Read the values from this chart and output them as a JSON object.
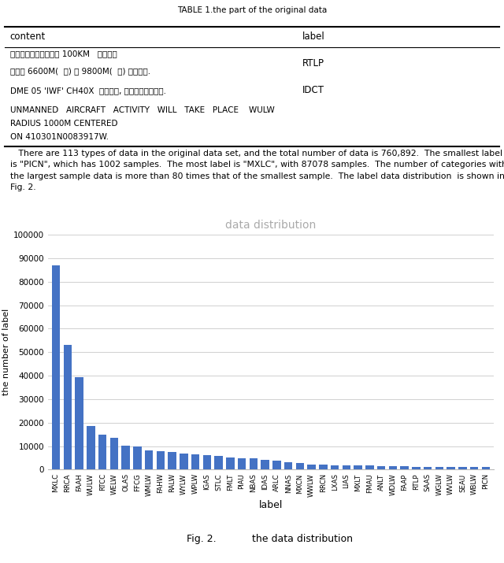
{
  "table_title": "TABLE 1.the part of the original data",
  "table_headers": [
    "content",
    "label"
  ],
  "paragraph_lines": [
    "   There are 113 types of data in the original data set, and the total number of data is 760,892.  The smallest label",
    "is \"PICN\", which has 1002 samples.  The most label is \"MXLC\", with 87078 samples.  The number of categories with",
    "the largest sample data is more than 80 times that of the smallest sample.  The label data distribution  is shown in",
    "Fig. 2."
  ],
  "chart_title": "data distribution",
  "xlabel": "label",
  "ylabel": "the number of label",
  "bar_color": "#4472C4",
  "yticks": [
    0,
    10000,
    20000,
    30000,
    40000,
    50000,
    60000,
    70000,
    80000,
    90000,
    100000
  ],
  "categories": [
    "MXLC",
    "RRCA",
    "FAAH",
    "WULW",
    "RTCC",
    "WELW",
    "OLAS",
    "FFCG",
    "WMLW",
    "FAHW",
    "RALW",
    "WYLW",
    "WPLW",
    "IGAS",
    "STLC",
    "FMLT",
    "PIAU",
    "NBAS",
    "IDAS",
    "ARLC",
    "NNAS",
    "MXCN",
    "WWLW",
    "RRCN",
    "LXAS",
    "LIAS",
    "MXLT",
    "FMAU",
    "ANLT",
    "WDLW",
    "FAAP",
    "RTLP",
    "SAAS",
    "WGLW",
    "WVLW",
    "SEAU",
    "WBLW",
    "PICN"
  ],
  "values": [
    87078,
    53000,
    39500,
    18500,
    14800,
    13500,
    10200,
    10000,
    8200,
    7800,
    7400,
    7000,
    6600,
    6200,
    5800,
    5100,
    4900,
    4700,
    4300,
    3800,
    3100,
    2900,
    2200,
    2100,
    2000,
    1900,
    1800,
    1700,
    1600,
    1500,
    1400,
    1300,
    1250,
    1200,
    1150,
    1100,
    1050,
    1002
  ],
  "fig_caption_left": "Fig. 2.",
  "fig_caption_right": "the data distribution",
  "grid_color": "#d0d0d0",
  "grid_linewidth": 0.7,
  "title_color": "#aaaaaa",
  "spine_color": "#bbbbbb",
  "table_row1_content_line1": "以和田机场为中心半径 100KM   范围内，",
  "table_row1_content_line2": "高度在 6600M(  含) 至 9800M(  含) 之间禁航.",
  "table_row1_label": "RTLP",
  "table_row2_content": "DME 05 'IWF' CH40X  仅供测试, 不可使用，因校飞.",
  "table_row2_label": "IDCT",
  "table_row3_line1": "UNMANNED   AIRCRAFT   ACTIVITY   WILL   TAKE   PLACE    WULW",
  "table_row3_line2": "RADIUS 1000M CENTERED",
  "table_row3_line3": "ON 410301N0083917W.",
  "table_row3_label": ""
}
